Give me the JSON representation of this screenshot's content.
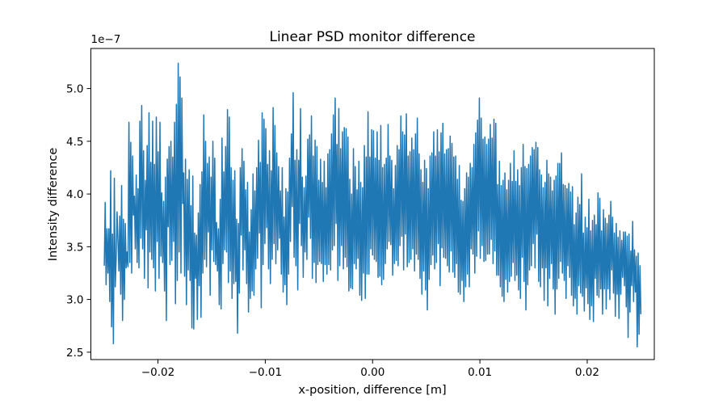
{
  "chart_data": {
    "type": "line",
    "title": "Linear PSD monitor difference",
    "xlabel": "x-position, difference [m]",
    "ylabel": "Intensity difference",
    "y_offset_label": "1e−7",
    "xlim": [
      -0.02625,
      0.02625
    ],
    "ylim": [
      2.43e-07,
      5.38e-07
    ],
    "x_ticks": [
      -0.02,
      -0.01,
      0.0,
      0.01,
      0.02
    ],
    "x_tick_labels": [
      "−0.02",
      "−0.01",
      "0.00",
      "0.01",
      "0.02"
    ],
    "y_ticks": [
      2.5e-07,
      3e-07,
      3.5e-07,
      4e-07,
      4.5e-07,
      5e-07
    ],
    "y_tick_labels": [
      "2.5",
      "3.0",
      "3.5",
      "4.0",
      "4.5",
      "5.0"
    ],
    "grid": false,
    "line_color": "#1f77b4",
    "series": [
      {
        "x_start": -0.025,
        "x_end": 0.025,
        "values": [
          3.32e-07,
          3.92e-07,
          3.14e-07,
          3.67e-07,
          3.25e-07,
          3.67e-07,
          2.98e-07,
          4.22e-07,
          2.74e-07,
          3.62e-07,
          2.58e-07,
          4.15e-07,
          3.12e-07,
          3.38e-07,
          3.83e-07,
          3.56e-07,
          3.27e-07,
          3.79e-07,
          3.05e-07,
          4.08e-07,
          2.8e-07,
          3.76e-07,
          3e-07,
          3.72e-07,
          3.3e-07,
          3.45e-07,
          3.31e-07,
          4.68e-07,
          3.35e-07,
          4.49e-07,
          3.25e-07,
          4.36e-07,
          3.8e-07,
          3.98e-07,
          3.48e-07,
          4.18e-07,
          3.35e-07,
          4.05e-07,
          3.3e-07,
          4.69e-07,
          3.58e-07,
          4.84e-07,
          3.48e-07,
          4.41e-07,
          3.2e-07,
          4.13e-07,
          3.66e-07,
          4.46e-07,
          3.11e-07,
          4.77e-07,
          3.45e-07,
          4.3e-07,
          3.38e-07,
          4.69e-07,
          3.3e-07,
          4.28e-07,
          3.08e-07,
          4.73e-07,
          3.55e-07,
          4.4e-07,
          3.2e-07,
          4.68e-07,
          3.41e-07,
          4.01e-07,
          3.35e-07,
          3.93e-07,
          3.08e-07,
          4.16e-07,
          2.8e-07,
          4.33e-07,
          3.69e-07,
          4.45e-07,
          3.33e-07,
          4.5e-07,
          3.37e-07,
          4.35e-07,
          3.55e-07,
          4.68e-07,
          2.96e-07,
          4.85e-07,
          3.18e-07,
          5.24e-07,
          3.45e-07,
          5.11e-07,
          3.25e-07,
          4.91e-07,
          3.91e-07,
          4.2e-07,
          3.22e-07,
          4.33e-07,
          2.95e-07,
          4.14e-07,
          3.28e-07,
          4.23e-07,
          3.18e-07,
          3.89e-07,
          2.73e-07,
          4.17e-07,
          2.72e-07,
          3.63e-07,
          3.2e-07,
          3.61e-07,
          2.81e-07,
          3.82e-07,
          3.13e-07,
          4.09e-07,
          2.83e-07,
          4.21e-07,
          3.25e-07,
          4.75e-07,
          3.38e-07,
          4.5e-07,
          3.31e-07,
          4.29e-07,
          3.64e-07,
          4.35e-07,
          3.04e-07,
          4.16e-07,
          3.47e-07,
          4.5e-07,
          3.36e-07,
          4.34e-07,
          3.33e-07,
          3.73e-07,
          3.27e-07,
          3.67e-07,
          2.95e-07,
          3.95e-07,
          2.91e-07,
          4.53e-07,
          3.34e-07,
          4.21e-07,
          3.47e-07,
          4.45e-07,
          3.45e-07,
          4.8e-07,
          3.16e-07,
          4.73e-07,
          3.27e-07,
          4.25e-07,
          3.01e-07,
          4.13e-07,
          3.15e-07,
          4.22e-07,
          3.17e-07,
          3.76e-07,
          2.68e-07,
          3.72e-07,
          3.06e-07,
          4.25e-07,
          3.61e-07,
          4.43e-07,
          3.28e-07,
          4.31e-07,
          3.47e-07,
          4.04e-07,
          3.15e-07,
          4.11e-07,
          2.88e-07,
          3.64e-07,
          3.01e-07,
          3.85e-07,
          3.08e-07,
          4.19e-07,
          3.04e-07,
          4.03e-07,
          3.29e-07,
          4.25e-07,
          3.39e-07,
          4.51e-07,
          3.63e-07,
          4.3e-07,
          2.92e-07,
          4.77e-07,
          3.33e-07,
          4.71e-07,
          3.53e-07,
          4.62e-07,
          3.68e-07,
          4.28e-07,
          3.29e-07,
          4.41e-07,
          3.15e-07,
          4.22e-07,
          3.38e-07,
          4.82e-07,
          3.53e-07,
          4.65e-07,
          3.34e-07,
          4.39e-07,
          3.47e-07,
          4.26e-07,
          3.58e-07,
          4.03e-07,
          3.24e-07,
          4.25e-07,
          3.07e-07,
          3.78e-07,
          3.14e-07,
          4.05e-07,
          2.95e-07,
          4.02e-07,
          3.24e-07,
          4.34e-07,
          3.55e-07,
          4.57e-07,
          3.88e-07,
          4.96e-07,
          3.4e-07,
          4.32e-07,
          3.32e-07,
          4.42e-07,
          3.09e-07,
          4.32e-07,
          3.72e-07,
          4.81e-07,
          3.51e-07,
          4.16e-07,
          3.21e-07,
          4.06e-07,
          3.45e-07,
          4.17e-07,
          3.38e-07,
          4.52e-07,
          3.78e-07,
          4.56e-07,
          3.58e-07,
          4.74e-07,
          3.2e-07,
          4.36e-07,
          3.35e-07,
          4.51e-07,
          3.16e-07,
          4.45e-07,
          3.33e-07,
          4.13e-07,
          3.36e-07,
          4.33e-07,
          3.34e-07,
          4.11e-07,
          3.17e-07,
          4.31e-07,
          3.33e-07,
          4.06e-07,
          3.24e-07,
          4.38e-07,
          3.33e-07,
          4.42e-07,
          3.28e-07,
          4.57e-07,
          3.47e-07,
          4.75e-07,
          3.51e-07,
          4.91e-07,
          3.72e-07,
          4.47e-07,
          3.18e-07,
          4.81e-07,
          3.32e-07,
          4.43e-07,
          3.51e-07,
          4.59e-07,
          3.29e-07,
          4.63e-07,
          3.4e-07,
          4.62e-07,
          3.31e-07,
          4.54e-07,
          3.08e-07,
          4.14e-07,
          3.11e-07,
          4e-07,
          3.1e-07,
          4.43e-07,
          3.34e-07,
          4.26e-07,
          3.29e-07,
          4.04e-07,
          3.39e-07,
          4.31e-07,
          3.04e-07,
          4.11e-07,
          2.99e-07,
          4.06e-07,
          3.25e-07,
          4.46e-07,
          3.01e-07,
          4.35e-07,
          3.24e-07,
          4.78e-07,
          3.24e-07,
          4.35e-07,
          3.48e-07,
          4.61e-07,
          3.42e-07,
          4.6e-07,
          3.38e-07,
          4.34e-07,
          3.36e-07,
          4.59e-07,
          3.21e-07,
          4.32e-07,
          3.22e-07,
          4.65e-07,
          3.14e-07,
          4.25e-07,
          3.19e-07,
          4.28e-07,
          3.34e-07,
          4.34e-07,
          3.48e-07,
          4.66e-07,
          3.55e-07,
          4.36e-07,
          3.52e-07,
          4.32e-07,
          3.23e-07,
          4.05e-07,
          3.34e-07,
          4.27e-07,
          3.37e-07,
          4.46e-07,
          3.32e-07,
          4.42e-07,
          3.51e-07,
          4.74e-07,
          3.6e-07,
          4.59e-07,
          3.28e-07,
          4.56e-07,
          3.62e-07,
          4.76e-07,
          3.31e-07,
          4.36e-07,
          3.35e-07,
          4.4e-07,
          3.38e-07,
          4.53e-07,
          3.48e-07,
          4.42e-07,
          3.27e-07,
          4.57e-07,
          3.43e-07,
          4.72e-07,
          3.38e-07,
          4.38e-07,
          3.2e-07,
          4.23e-07,
          3.05e-07,
          4.11e-07,
          3.27e-07,
          4.32e-07,
          3.09e-07,
          4.24e-07,
          2.9e-07,
          4.05e-07,
          3.19e-07,
          4.36e-07,
          3.33e-07,
          4.39e-07,
          3.42e-07,
          4.59e-07,
          3.29e-07,
          4.36e-07,
          3.35e-07,
          4.61e-07,
          3.53e-07,
          4.4e-07,
          3.13e-07,
          4.58e-07,
          3.49e-07,
          4.67e-07,
          3.4e-07,
          4.38e-07,
          3.39e-07,
          4.42e-07,
          3.32e-07,
          4.43e-07,
          3.26e-07,
          4.55e-07,
          3.46e-07,
          4.48e-07,
          3.26e-07,
          4.35e-07,
          3.21e-07,
          4.36e-07,
          3.34e-07,
          4.14e-07,
          3.07e-07,
          4.27e-07,
          3.05e-07,
          3.94e-07,
          3.18e-07,
          3.93e-07,
          2.98e-07,
          4.05e-07,
          3.12e-07,
          4.2e-07,
          3.24e-07,
          4.16e-07,
          3.12e-07,
          4.29e-07,
          3.48e-07,
          4.25e-07,
          3.43e-07,
          4.47e-07,
          3.25e-07,
          4.58e-07,
          3.41e-07,
          4.7e-07,
          3.65e-07,
          4.91e-07,
          3.39e-07,
          4.72e-07,
          3.51e-07,
          4.52e-07,
          3.36e-07,
          4.54e-07,
          3.37e-07,
          4.47e-07,
          3.43e-07,
          4.52e-07,
          3.43e-07,
          4.66e-07,
          3.57e-07,
          4.53e-07,
          3.34e-07,
          4.71e-07,
          3.46e-07,
          4.67e-07,
          3.23e-07,
          4.09e-07,
          3.23e-07,
          4.31e-07,
          3.12e-07,
          4.08e-07,
          3.03e-07,
          4.13e-07,
          2.98e-07,
          4.2e-07,
          3.19e-07,
          4.04e-07,
          3.07e-07,
          4.13e-07,
          3.17e-07,
          4.29e-07,
          3.22e-07,
          4.12e-07,
          3.35e-07,
          4.41e-07,
          3.18e-07,
          4.12e-07,
          3.23e-07,
          4.23e-07,
          3.09e-07,
          4.08e-07,
          3.01e-07,
          4.25e-07,
          3.4e-07,
          4.47e-07,
          3.17e-07,
          4.26e-07,
          2.9e-07,
          4.24e-07,
          3.14e-07,
          4.28e-07,
          3.28e-07,
          4.36e-07,
          3.32e-07,
          4.44e-07,
          3.53e-07,
          4.42e-07,
          3.3e-07,
          4.49e-07,
          3.62e-07,
          4.44e-07,
          3.17e-07,
          4.23e-07,
          3.12e-07,
          4.18e-07,
          3.3e-07,
          4.06e-07,
          2.99e-07,
          4.11e-07,
          3.3e-07,
          4.32e-07,
          2.94e-07,
          4.19e-07,
          3.2e-07,
          4.16e-07,
          3.34e-07,
          4.03e-07,
          3.1e-07,
          4.13e-07,
          2.86e-07,
          4.17e-07,
          3.1e-07,
          4.29e-07,
          3.2e-07,
          4.29e-07,
          3.36e-07,
          4.39e-07,
          3.25e-07,
          4.09e-07,
          3.18e-07,
          4.08e-07,
          3.01e-07,
          4.05e-07,
          3.32e-07,
          4.1e-07,
          3.21e-07,
          4.02e-07,
          3.04e-07,
          4.07e-07,
          2.94e-07,
          3.71e-07,
          3.01e-07,
          3.82e-07,
          2.86e-07,
          3.97e-07,
          3.13e-07,
          3.9e-07,
          3.06e-07,
          4.19e-07,
          3.03e-07,
          3.63e-07,
          2.89e-07,
          3.78e-07,
          3.11e-07,
          3.68e-07,
          2.96e-07,
          3.95e-07,
          2.81e-07,
          3.65e-07,
          2.94e-07,
          3.75e-07,
          2.79e-07,
          3.8e-07,
          3.2e-07,
          3.71e-07,
          3.04e-07,
          4.01e-07,
          3.02e-07,
          3.96e-07,
          3.1e-07,
          3.65e-07,
          2.86e-07,
          3.85e-07,
          3.1e-07,
          3.77e-07,
          2.91e-07,
          3.72e-07,
          3.1e-07,
          3.8e-07,
          3e-07,
          3.93e-07,
          3.28e-07,
          3.78e-07,
          3.06e-07,
          3.63e-07,
          2.84e-07,
          3.72e-07,
          3.05e-07,
          3.59e-07,
          2.82e-07,
          3.65e-07,
          3.05e-07,
          3.56e-07,
          3.21e-07,
          3.64e-07,
          3.13e-07,
          3.64e-07,
          2.93e-07,
          3.6e-07,
          2.64e-07,
          3.62e-07,
          2.88e-07,
          3.46e-07,
          3.13e-07,
          3.74e-07,
          2.98e-07,
          3.47e-07,
          3.07e-07,
          3.41e-07,
          2.55e-07,
          3.44e-07,
          2.67e-07,
          3.32e-07,
          2.86e-07
        ]
      }
    ]
  }
}
